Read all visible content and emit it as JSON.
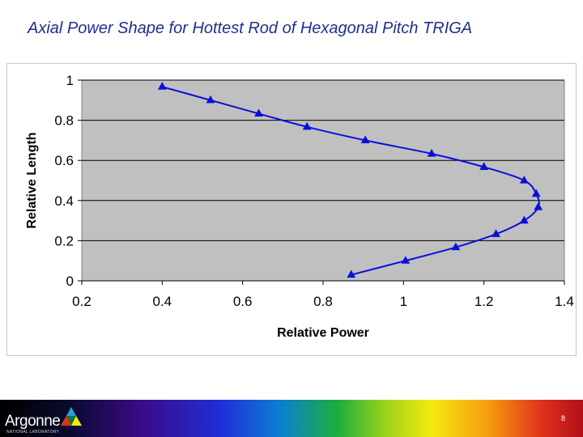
{
  "slide": {
    "title": "Axial Power Shape for Hottest Rod of Hexagonal Pitch TRIGA",
    "page_number": "8"
  },
  "footer": {
    "logo_text": "Argonne",
    "logo_subtext": "NATIONAL LABORATORY",
    "logo_icon": "argonne-triangle-icon"
  },
  "colors": {
    "series": "#0a10d8",
    "plot_bg": "#c0c0c0",
    "title": "#1f2f8c"
  },
  "chart_data": {
    "type": "line",
    "title": "",
    "xlabel": "Relative Power",
    "ylabel": "Relative Length",
    "xlim": [
      0.2,
      1.4
    ],
    "ylim": [
      0,
      1
    ],
    "xticks": [
      "0.2",
      "0.4",
      "0.6",
      "0.8",
      "1",
      "1.2",
      "1.4"
    ],
    "yticks": [
      "0",
      "0.2",
      "0.4",
      "0.6",
      "0.8",
      "1"
    ],
    "grid": "horizontal",
    "legend": "none",
    "series": [
      {
        "name": "Hottest Rod",
        "marker": "triangle",
        "points": [
          [
            0.87,
            0.03
          ],
          [
            1.005,
            0.1
          ],
          [
            1.13,
            0.167
          ],
          [
            1.23,
            0.233
          ],
          [
            1.3,
            0.3
          ],
          [
            1.335,
            0.367
          ],
          [
            1.33,
            0.433
          ],
          [
            1.3,
            0.5
          ],
          [
            1.2,
            0.567
          ],
          [
            1.07,
            0.633
          ],
          [
            0.905,
            0.7
          ],
          [
            0.76,
            0.767
          ],
          [
            0.64,
            0.833
          ],
          [
            0.52,
            0.9
          ],
          [
            0.4,
            0.967
          ]
        ]
      }
    ]
  }
}
